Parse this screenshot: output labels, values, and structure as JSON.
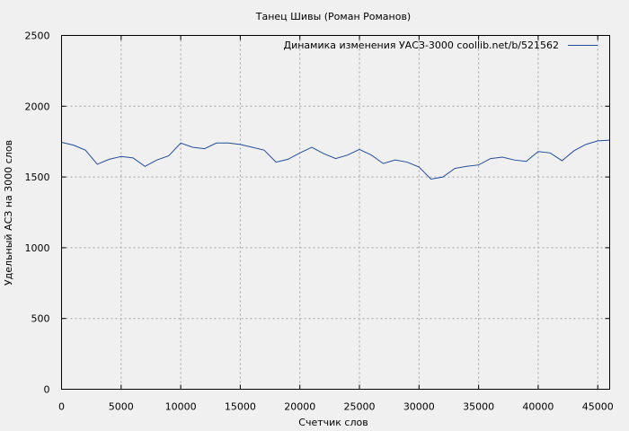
{
  "chart_data": {
    "type": "line",
    "title": "Танец Шивы (Роман Романов)",
    "xlabel": "Счетчик слов",
    "ylabel": "Удельный АСЗ на 3000 слов",
    "xlim": [
      0,
      46000
    ],
    "ylim": [
      0,
      2500
    ],
    "xticks": [
      0,
      5000,
      10000,
      15000,
      20000,
      25000,
      30000,
      35000,
      40000,
      45000
    ],
    "yticks": [
      0,
      500,
      1000,
      1500,
      2000,
      2500
    ],
    "grid": true,
    "legend_position": "top-right",
    "series": [
      {
        "name": "Динамика изменения УАСЗ-3000  coollib.net/b/521562",
        "color": "#1f4e9e",
        "x": [
          0,
          1000,
          2000,
          3000,
          4000,
          5000,
          6000,
          7000,
          8000,
          9000,
          10000,
          11000,
          12000,
          13000,
          14000,
          15000,
          16000,
          17000,
          18000,
          19000,
          20000,
          21000,
          22000,
          23000,
          24000,
          25000,
          26000,
          27000,
          28000,
          29000,
          30000,
          31000,
          32000,
          33000,
          34000,
          35000,
          36000,
          37000,
          38000,
          39000,
          40000,
          41000,
          42000,
          43000,
          44000,
          45000,
          46000
        ],
        "values": [
          1745,
          1725,
          1690,
          1590,
          1625,
          1645,
          1635,
          1575,
          1620,
          1650,
          1740,
          1710,
          1700,
          1740,
          1740,
          1730,
          1710,
          1690,
          1605,
          1625,
          1670,
          1710,
          1665,
          1630,
          1655,
          1695,
          1655,
          1595,
          1620,
          1605,
          1570,
          1485,
          1500,
          1560,
          1575,
          1585,
          1630,
          1640,
          1620,
          1610,
          1680,
          1670,
          1615,
          1685,
          1730,
          1755,
          1760
        ]
      }
    ]
  }
}
